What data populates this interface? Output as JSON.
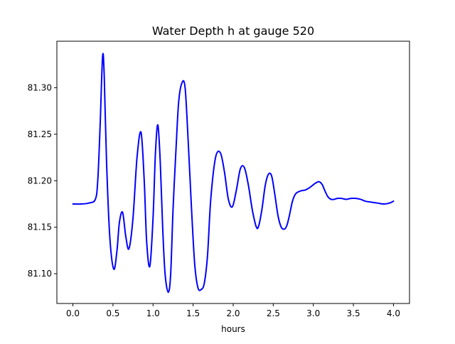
{
  "chart_data": {
    "type": "line",
    "title": "Water Depth h at gauge 520",
    "xlabel": "hours",
    "ylabel": "",
    "xlim": [
      -0.2,
      4.2
    ],
    "ylim": [
      81.068,
      81.35
    ],
    "x_ticks": [
      0.0,
      0.5,
      1.0,
      1.5,
      2.0,
      2.5,
      3.0,
      3.5,
      4.0
    ],
    "x_tick_labels": [
      "0.0",
      "0.5",
      "1.0",
      "1.5",
      "2.0",
      "2.5",
      "3.0",
      "3.5",
      "4.0"
    ],
    "y_ticks": [
      81.1,
      81.15,
      81.2,
      81.25,
      81.3
    ],
    "y_tick_labels": [
      "81.10",
      "81.15",
      "81.20",
      "81.25",
      "81.30"
    ],
    "grid": false,
    "legend": "none",
    "series": [
      {
        "color": "#0000ff",
        "x": [
          0.0,
          0.1,
          0.2,
          0.28,
          0.31,
          0.34,
          0.37,
          0.39,
          0.42,
          0.46,
          0.51,
          0.55,
          0.58,
          0.62,
          0.66,
          0.7,
          0.75,
          0.8,
          0.85,
          0.89,
          0.92,
          0.96,
          1.0,
          1.03,
          1.06,
          1.09,
          1.12,
          1.15,
          1.19,
          1.22,
          1.25,
          1.29,
          1.32,
          1.36,
          1.4,
          1.44,
          1.48,
          1.52,
          1.56,
          1.6,
          1.64,
          1.68,
          1.72,
          1.78,
          1.84,
          1.89,
          1.94,
          1.99,
          2.04,
          2.09,
          2.14,
          2.19,
          2.24,
          2.29,
          2.32,
          2.36,
          2.4,
          2.44,
          2.48,
          2.52,
          2.56,
          2.6,
          2.64,
          2.67,
          2.7,
          2.74,
          2.78,
          2.84,
          2.9,
          2.96,
          3.02,
          3.07,
          3.11,
          3.14,
          3.18,
          3.22,
          3.26,
          3.3,
          3.35,
          3.41,
          3.47,
          3.53,
          3.59,
          3.65,
          3.72,
          3.8,
          3.88,
          3.95,
          4.0
        ],
        "y": [
          81.175,
          81.175,
          81.176,
          81.18,
          81.2,
          81.26,
          81.333,
          81.315,
          81.22,
          81.14,
          81.105,
          81.125,
          81.155,
          81.166,
          81.14,
          81.127,
          81.16,
          81.225,
          81.252,
          81.2,
          81.135,
          81.108,
          81.16,
          81.23,
          81.26,
          81.22,
          81.15,
          81.1,
          81.08,
          81.1,
          81.17,
          81.24,
          81.285,
          81.305,
          81.3,
          81.24,
          81.17,
          81.11,
          81.085,
          81.083,
          81.09,
          81.12,
          81.18,
          81.225,
          81.23,
          81.21,
          81.18,
          81.172,
          81.19,
          81.213,
          81.214,
          81.195,
          81.168,
          81.15,
          81.152,
          81.17,
          81.195,
          81.207,
          81.205,
          81.185,
          81.162,
          81.15,
          81.148,
          81.152,
          81.162,
          81.178,
          81.186,
          81.189,
          81.19,
          81.193,
          81.197,
          81.199,
          81.196,
          81.19,
          81.183,
          81.18,
          81.18,
          81.181,
          81.181,
          81.18,
          81.181,
          81.181,
          81.18,
          81.178,
          81.177,
          81.176,
          81.175,
          81.176,
          81.178
        ]
      }
    ]
  }
}
